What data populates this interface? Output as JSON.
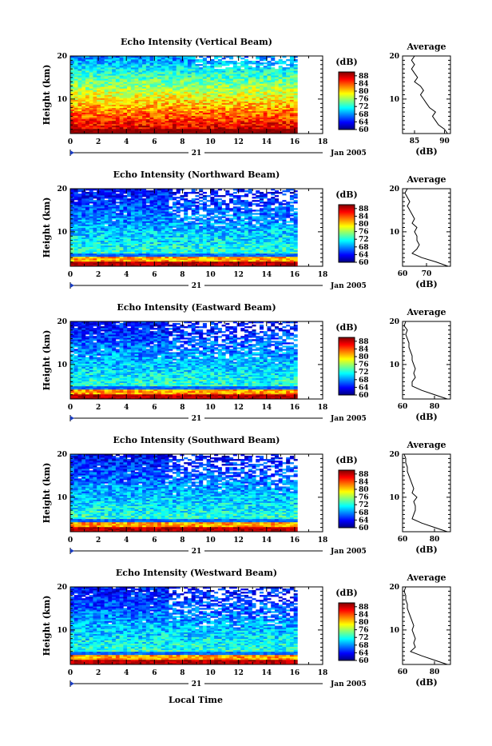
{
  "figure": {
    "xlabel": "Local Time",
    "colors": {
      "jet": [
        "#00007f",
        "#0000ff",
        "#007fff",
        "#00ffff",
        "#7fff7f",
        "#ffff00",
        "#ff7f00",
        "#ff0000",
        "#7f0000"
      ]
    }
  },
  "chart_data": [
    {
      "type": "heatmap",
      "title": "Echo Intensity (Vertical Beam)",
      "ylabel": "Height (km)",
      "x_ticks": [
        "0",
        "2",
        "4",
        "6",
        "8",
        "10",
        "12",
        "14",
        "16",
        "18"
      ],
      "x_range": [
        0,
        18
      ],
      "y_ticks": [
        "20",
        "10"
      ],
      "y_range": [
        2,
        20
      ],
      "day_label": "21",
      "date_label": "Jan 2005",
      "colorbar": {
        "label": "(dB)",
        "ticks": [
          "88",
          "84",
          "80",
          "76",
          "72",
          "68",
          "64",
          "60"
        ],
        "range": [
          60,
          90
        ]
      },
      "data_extent_hours": [
        0,
        16.2
      ],
      "average": {
        "title": "Average",
        "xlabel": "(dB)",
        "x_ticks": [
          "85",
          "90"
        ],
        "x_range": [
          83,
          91
        ],
        "y_ticks": [
          "20",
          "10"
        ],
        "height_km": [
          2,
          3,
          4,
          5,
          6,
          7,
          8,
          9,
          10,
          11,
          12,
          13,
          14,
          15,
          16,
          17,
          18,
          19,
          20
        ],
        "values_db": [
          90.5,
          90.0,
          89.0,
          88.5,
          88.0,
          88.5,
          87.5,
          87.0,
          86.5,
          86.0,
          86.5,
          86.0,
          85.0,
          85.5,
          85.0,
          84.5,
          85.0,
          84.5,
          85.0
        ]
      }
    },
    {
      "type": "heatmap",
      "title": "Echo Intensity (Northward Beam)",
      "ylabel": "Height (km)",
      "x_ticks": [
        "0",
        "2",
        "4",
        "6",
        "8",
        "10",
        "12",
        "14",
        "16",
        "18"
      ],
      "x_range": [
        0,
        18
      ],
      "y_ticks": [
        "20",
        "10"
      ],
      "y_range": [
        2,
        20
      ],
      "day_label": "21",
      "date_label": "Jan 2005",
      "colorbar": {
        "label": "(dB)",
        "ticks": [
          "88",
          "84",
          "80",
          "76",
          "72",
          "68",
          "64",
          "60"
        ],
        "range": [
          60,
          90
        ]
      },
      "data_extent_hours": [
        0,
        16.2
      ],
      "average": {
        "title": "Average",
        "xlabel": "(dB)",
        "x_ticks": [
          "60",
          "70"
        ],
        "x_range": [
          60,
          80
        ],
        "y_ticks": [
          "20",
          "10"
        ],
        "height_km": [
          2,
          3,
          4,
          5,
          6,
          7,
          8,
          9,
          10,
          11,
          12,
          13,
          14,
          15,
          16,
          17,
          18,
          19,
          20
        ],
        "values_db": [
          79,
          74,
          68,
          64,
          66,
          67,
          66,
          66,
          65,
          66,
          64,
          65,
          64,
          63,
          62,
          63,
          62,
          61,
          62
        ]
      }
    },
    {
      "type": "heatmap",
      "title": "Echo Intensity (Eastward Beam)",
      "ylabel": "Height (km)",
      "x_ticks": [
        "0",
        "2",
        "4",
        "6",
        "8",
        "10",
        "12",
        "14",
        "16",
        "18"
      ],
      "x_range": [
        0,
        18
      ],
      "y_ticks": [
        "20",
        "10"
      ],
      "y_range": [
        2,
        20
      ],
      "day_label": "21",
      "date_label": "Jan 2005",
      "colorbar": {
        "label": "(dB)",
        "ticks": [
          "88",
          "84",
          "80",
          "76",
          "72",
          "68",
          "64",
          "60"
        ],
        "range": [
          60,
          90
        ]
      },
      "data_extent_hours": [
        0,
        16.2
      ],
      "average": {
        "title": "Average",
        "xlabel": "(dB)",
        "x_ticks": [
          "60",
          "80"
        ],
        "x_range": [
          60,
          90
        ],
        "y_ticks": [
          "20",
          "10"
        ],
        "height_km": [
          2,
          3,
          4,
          5,
          6,
          7,
          8,
          9,
          10,
          11,
          12,
          13,
          14,
          15,
          16,
          17,
          18,
          19,
          20
        ],
        "values_db": [
          88,
          80,
          72,
          66,
          66,
          68,
          67,
          68,
          67,
          66,
          66,
          65,
          64,
          64,
          63,
          62,
          63,
          61,
          62
        ]
      }
    },
    {
      "type": "heatmap",
      "title": "Echo Intensity (Southward Beam)",
      "ylabel": "Height (km)",
      "x_ticks": [
        "0",
        "2",
        "4",
        "6",
        "8",
        "10",
        "12",
        "14",
        "16",
        "18"
      ],
      "x_range": [
        0,
        18
      ],
      "y_ticks": [
        "20",
        "10"
      ],
      "y_range": [
        2,
        20
      ],
      "day_label": "21",
      "date_label": "Jan 2005",
      "colorbar": {
        "label": "(dB)",
        "ticks": [
          "88",
          "84",
          "80",
          "76",
          "72",
          "68",
          "64",
          "60"
        ],
        "range": [
          60,
          90
        ]
      },
      "data_extent_hours": [
        0,
        16.2
      ],
      "average": {
        "title": "Average",
        "xlabel": "(dB)",
        "x_ticks": [
          "60",
          "80"
        ],
        "x_range": [
          60,
          90
        ],
        "y_ticks": [
          "20",
          "10"
        ],
        "height_km": [
          2,
          3,
          4,
          5,
          6,
          7,
          8,
          9,
          10,
          11,
          12,
          13,
          14,
          15,
          16,
          17,
          18,
          19,
          20
        ],
        "values_db": [
          88,
          80,
          72,
          66,
          67,
          68,
          68,
          67,
          69,
          66,
          67,
          66,
          65,
          64,
          63,
          63,
          62,
          62,
          61
        ]
      }
    },
    {
      "type": "heatmap",
      "title": "Echo Intensity (Westward Beam)",
      "ylabel": "Height (km)",
      "x_ticks": [
        "0",
        "2",
        "4",
        "6",
        "8",
        "10",
        "12",
        "14",
        "16",
        "18"
      ],
      "x_range": [
        0,
        18
      ],
      "y_ticks": [
        "20",
        "10"
      ],
      "y_range": [
        2,
        20
      ],
      "day_label": "21",
      "date_label": "Jan 2005",
      "colorbar": {
        "label": "(dB)",
        "ticks": [
          "88",
          "84",
          "80",
          "76",
          "72",
          "68",
          "64",
          "60"
        ],
        "range": [
          60,
          90
        ]
      },
      "data_extent_hours": [
        0,
        16.2
      ],
      "average": {
        "title": "Average",
        "xlabel": "(dB)",
        "x_ticks": [
          "60",
          "80"
        ],
        "x_range": [
          60,
          90
        ],
        "y_ticks": [
          "20",
          "10"
        ],
        "height_km": [
          2,
          3,
          4,
          5,
          6,
          7,
          8,
          9,
          10,
          11,
          12,
          13,
          14,
          15,
          16,
          17,
          18,
          19,
          20
        ],
        "values_db": [
          88,
          80,
          72,
          65,
          68,
          67,
          68,
          67,
          66,
          67,
          66,
          65,
          64,
          63,
          63,
          62,
          62,
          61,
          62
        ]
      }
    }
  ]
}
